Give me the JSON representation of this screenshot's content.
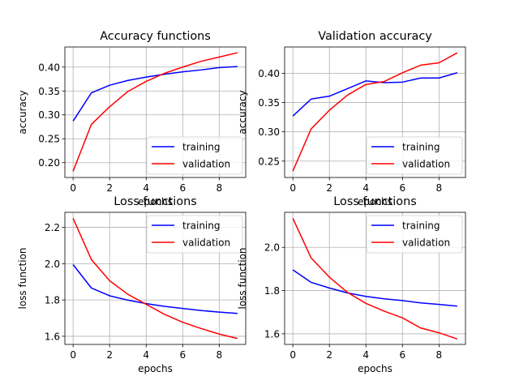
{
  "chart_data": [
    {
      "type": "line",
      "title": "Accuracy functions",
      "xlabel": "epochs",
      "ylabel": "accuracy",
      "x": [
        0,
        1,
        2,
        3,
        4,
        5,
        6,
        7,
        8,
        9
      ],
      "xlim": [
        -0.45,
        9.45
      ],
      "ylim": [
        0.169,
        0.442
      ],
      "xticks": [
        0,
        2,
        4,
        6,
        8
      ],
      "yticks": [
        0.2,
        0.25,
        0.3,
        0.35,
        0.4
      ],
      "ytick_labels": [
        "0.20",
        "0.25",
        "0.30",
        "0.35",
        "0.40"
      ],
      "grid": true,
      "legend_position": "lower-right",
      "series": [
        {
          "name": "training",
          "color": "#0000ff",
          "values": [
            0.287,
            0.346,
            0.362,
            0.372,
            0.379,
            0.385,
            0.39,
            0.394,
            0.399,
            0.401
          ]
        },
        {
          "name": "validation",
          "color": "#ff0000",
          "values": [
            0.182,
            0.28,
            0.317,
            0.349,
            0.37,
            0.387,
            0.4,
            0.412,
            0.421,
            0.43
          ]
        }
      ]
    },
    {
      "type": "line",
      "title": "Validation accuracy",
      "xlabel": "epochs",
      "ylabel": "accuracy",
      "x": [
        0,
        1,
        2,
        3,
        4,
        5,
        6,
        7,
        8,
        9
      ],
      "xlim": [
        -0.45,
        9.45
      ],
      "ylim": [
        0.222,
        0.445
      ],
      "xticks": [
        0,
        2,
        4,
        6,
        8
      ],
      "yticks": [
        0.25,
        0.3,
        0.35,
        0.4
      ],
      "ytick_labels": [
        "0.25",
        "0.30",
        "0.35",
        "0.40"
      ],
      "grid": true,
      "legend_position": "lower-right",
      "series": [
        {
          "name": "training",
          "color": "#0000ff",
          "values": [
            0.327,
            0.356,
            0.361,
            0.374,
            0.387,
            0.384,
            0.385,
            0.392,
            0.392,
            0.401
          ]
        },
        {
          "name": "validation",
          "color": "#ff0000",
          "values": [
            0.233,
            0.305,
            0.337,
            0.363,
            0.381,
            0.386,
            0.401,
            0.414,
            0.418,
            0.435
          ]
        }
      ]
    },
    {
      "type": "line",
      "title": "Loss functions",
      "xlabel": "epochs",
      "ylabel": "loss function",
      "x": [
        0,
        1,
        2,
        3,
        4,
        5,
        6,
        7,
        8,
        9
      ],
      "xlim": [
        -0.45,
        9.45
      ],
      "ylim": [
        1.555,
        2.283
      ],
      "xticks": [
        0,
        2,
        4,
        6,
        8
      ],
      "yticks": [
        1.6,
        1.8,
        2.0,
        2.2
      ],
      "ytick_labels": [
        "1.6",
        "1.8",
        "2.0",
        "2.2"
      ],
      "grid": true,
      "legend_position": "upper-right",
      "series": [
        {
          "name": "training",
          "color": "#0000ff",
          "values": [
            1.995,
            1.866,
            1.823,
            1.799,
            1.78,
            1.765,
            1.753,
            1.742,
            1.733,
            1.726
          ]
        },
        {
          "name": "validation",
          "color": "#ff0000",
          "values": [
            2.25,
            2.023,
            1.906,
            1.831,
            1.776,
            1.721,
            1.677,
            1.643,
            1.612,
            1.588
          ]
        }
      ]
    },
    {
      "type": "line",
      "title": "Loss functions",
      "xlabel": "epochs",
      "ylabel": "loss function",
      "x": [
        0,
        1,
        2,
        3,
        4,
        5,
        6,
        7,
        8,
        9
      ],
      "xlim": [
        -0.45,
        9.45
      ],
      "ylim": [
        1.551,
        2.162
      ],
      "xticks": [
        0,
        2,
        4,
        6,
        8
      ],
      "yticks": [
        1.6,
        1.8,
        2.0
      ],
      "ytick_labels": [
        "1.6",
        "1.8",
        "2.0"
      ],
      "grid": true,
      "legend_position": "upper-right",
      "series": [
        {
          "name": "training",
          "color": "#0000ff",
          "values": [
            1.896,
            1.838,
            1.812,
            1.789,
            1.773,
            1.762,
            1.754,
            1.743,
            1.736,
            1.728
          ]
        },
        {
          "name": "validation",
          "color": "#ff0000",
          "values": [
            2.134,
            1.951,
            1.862,
            1.791,
            1.741,
            1.705,
            1.674,
            1.627,
            1.605,
            1.576
          ]
        }
      ]
    }
  ]
}
